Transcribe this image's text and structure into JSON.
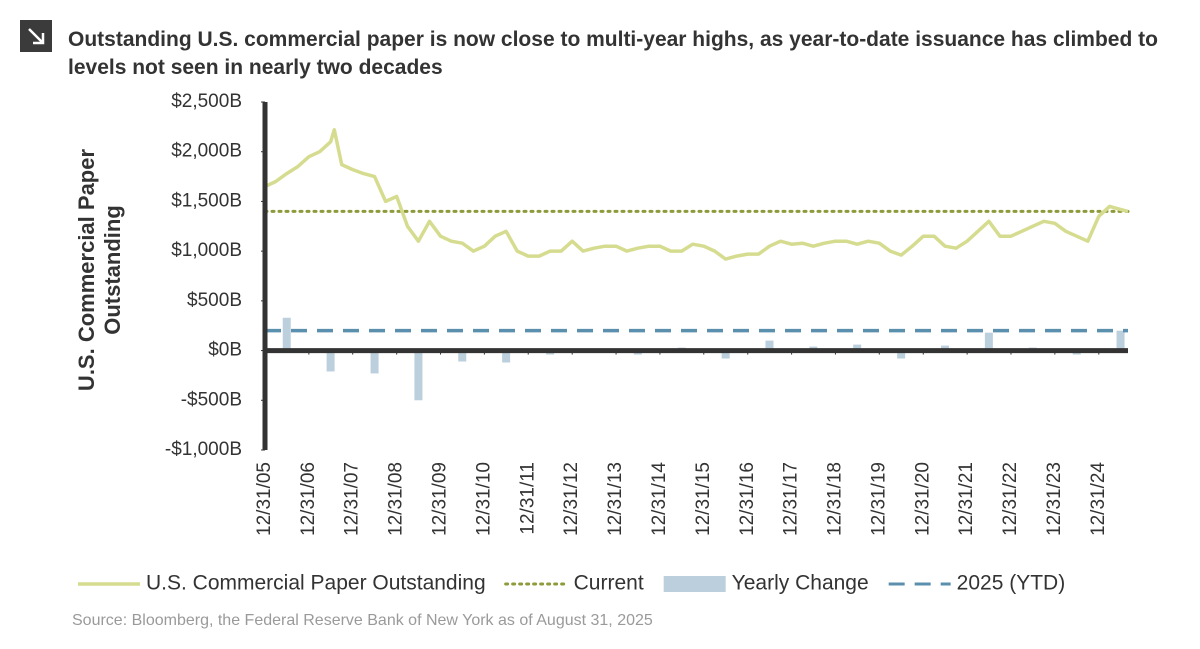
{
  "chart_data": {
    "type": "combo",
    "title": "Outstanding U.S. commercial paper is now close to multi-year highs, as year-to-date issuance has climbed to levels not seen in nearly two decades",
    "y_label": "U.S. Commercial Paper Outstanding",
    "source": "Source: Bloomberg, the Federal Reserve Bank of New York as of August 31, 2025",
    "xlim": [
      "12/31/05",
      "08/31/25"
    ],
    "xticks": [
      "12/31/05",
      "12/31/06",
      "12/31/07",
      "12/31/08",
      "12/31/09",
      "12/31/10",
      "12/31/11",
      "12/31/12",
      "12/31/13",
      "12/31/14",
      "12/31/15",
      "12/31/16",
      "12/31/17",
      "12/31/18",
      "12/31/19",
      "12/31/20",
      "12/31/21",
      "12/31/22",
      "12/31/23",
      "12/31/24"
    ],
    "ylim": [
      -1000,
      2500
    ],
    "yticks": [
      {
        "value": -1000,
        "label": "-$1,000B"
      },
      {
        "value": -500,
        "label": "-$500B"
      },
      {
        "value": 0,
        "label": "$0B"
      },
      {
        "value": 500,
        "label": "$500B"
      },
      {
        "value": 1000,
        "label": "$1,000B"
      },
      {
        "value": 1500,
        "label": "$1,500B"
      },
      {
        "value": 2000,
        "label": "$2,000B"
      },
      {
        "value": 2500,
        "label": "$2,500B"
      }
    ],
    "series": [
      {
        "name": "U.S. Commercial Paper Outstanding",
        "type": "line",
        "color": "#d6dc8f",
        "x": [
          "12/31/05",
          "03/31/06",
          "06/30/06",
          "09/30/06",
          "12/31/06",
          "03/31/07",
          "06/30/07",
          "07/31/07",
          "09/30/07",
          "12/31/07",
          "03/31/08",
          "06/30/08",
          "09/30/08",
          "12/31/08",
          "03/31/09",
          "06/30/09",
          "09/30/09",
          "12/31/09",
          "03/31/10",
          "06/30/10",
          "09/30/10",
          "12/31/10",
          "03/31/11",
          "06/30/11",
          "09/30/11",
          "12/31/11",
          "03/31/12",
          "06/30/12",
          "09/30/12",
          "12/31/12",
          "03/31/13",
          "06/30/13",
          "09/30/13",
          "12/31/13",
          "03/31/14",
          "06/30/14",
          "09/30/14",
          "12/31/14",
          "03/31/15",
          "06/30/15",
          "09/30/15",
          "12/31/15",
          "03/31/16",
          "06/30/16",
          "09/30/16",
          "12/31/16",
          "03/31/17",
          "06/30/17",
          "09/30/17",
          "12/31/17",
          "03/31/18",
          "06/30/18",
          "09/30/18",
          "12/31/18",
          "03/31/19",
          "06/30/19",
          "09/30/19",
          "12/31/19",
          "03/31/20",
          "06/30/20",
          "09/30/20",
          "12/31/20",
          "03/31/21",
          "06/30/21",
          "09/30/21",
          "12/31/21",
          "03/31/22",
          "06/30/22",
          "09/30/22",
          "12/31/22",
          "03/31/23",
          "06/30/23",
          "09/30/23",
          "12/31/23",
          "03/31/24",
          "06/30/24",
          "09/30/24",
          "12/31/24",
          "03/31/25",
          "06/30/25",
          "08/31/25"
        ],
        "values": [
          1650,
          1700,
          1780,
          1850,
          1950,
          2000,
          2100,
          2220,
          1870,
          1820,
          1780,
          1750,
          1500,
          1550,
          1250,
          1100,
          1300,
          1150,
          1100,
          1080,
          1000,
          1050,
          1150,
          1200,
          1000,
          950,
          950,
          1000,
          1000,
          1100,
          1000,
          1030,
          1050,
          1050,
          1000,
          1030,
          1050,
          1050,
          1000,
          1000,
          1070,
          1050,
          1000,
          920,
          950,
          970,
          970,
          1050,
          1100,
          1070,
          1080,
          1050,
          1080,
          1100,
          1100,
          1070,
          1100,
          1080,
          1000,
          960,
          1050,
          1150,
          1150,
          1050,
          1030,
          1100,
          1200,
          1300,
          1150,
          1150,
          1200,
          1250,
          1300,
          1280,
          1200,
          1150,
          1100,
          1350,
          1450,
          1420,
          1400
        ]
      },
      {
        "name": "Current",
        "type": "hline",
        "style": "dotted",
        "color": "#8f9a3a",
        "values": [
          1400
        ]
      },
      {
        "name": "Yearly Change",
        "type": "bar",
        "color": "#bccfdc",
        "x": [
          "06/30/06",
          "06/30/07",
          "06/30/08",
          "06/30/09",
          "06/30/10",
          "06/30/11",
          "06/30/12",
          "06/30/13",
          "06/30/14",
          "06/30/15",
          "06/30/16",
          "06/30/17",
          "06/30/18",
          "06/30/19",
          "06/30/20",
          "06/30/21",
          "06/30/22",
          "06/30/23",
          "06/30/24",
          "06/30/25"
        ],
        "values": [
          330,
          -210,
          -230,
          -500,
          -110,
          -120,
          -40,
          -20,
          -40,
          30,
          -80,
          100,
          40,
          60,
          -80,
          50,
          180,
          30,
          -40,
          200
        ]
      },
      {
        "name": "2025 (YTD)",
        "type": "hline",
        "style": "dashed",
        "color": "#5b8fae",
        "values": [
          200
        ]
      }
    ]
  }
}
